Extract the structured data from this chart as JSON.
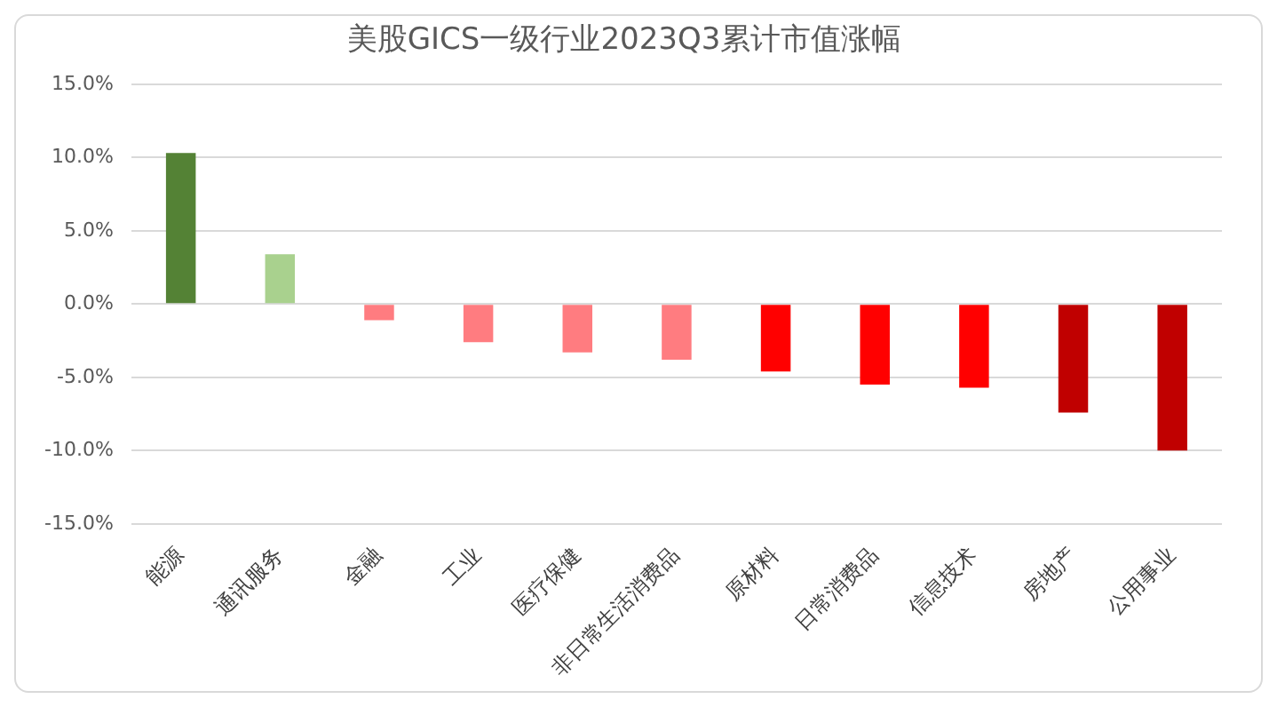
{
  "chart_data": {
    "type": "bar",
    "title": "美股GICS一级行业2023Q3累计市值涨幅",
    "categories": [
      "能源",
      "通讯服务",
      "金融",
      "工业",
      "医疗保健",
      "非日常生活消费品",
      "原材料",
      "日常消费品",
      "信息技术",
      "房地产",
      "公用事业"
    ],
    "values": [
      10.3,
      3.4,
      -1.1,
      -2.6,
      -3.3,
      -3.8,
      -4.6,
      -5.5,
      -5.7,
      -7.4,
      -10.0
    ],
    "colors": [
      "#548235",
      "#a9d18e",
      "#ff7c80",
      "#ff7c80",
      "#ff7c80",
      "#ff7c80",
      "#ff0000",
      "#ff0000",
      "#ff0000",
      "#c00000",
      "#c00000"
    ],
    "ylim": [
      -15,
      15
    ],
    "yticks": [
      {
        "value": -15,
        "label": "-15.0%"
      },
      {
        "value": -10,
        "label": "-10.0%"
      },
      {
        "value": -5,
        "label": "-5.0%"
      },
      {
        "value": 0,
        "label": "0.0%"
      },
      {
        "value": 5,
        "label": "5.0%"
      },
      {
        "value": 10,
        "label": "10.0%"
      },
      {
        "value": 15,
        "label": "15.0%"
      }
    ],
    "grid": "y",
    "legend": false
  }
}
